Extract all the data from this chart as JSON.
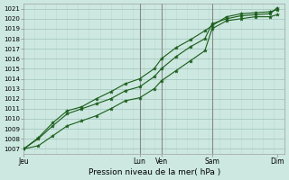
{
  "xlabel": "Pression niveau de la mer( hPa )",
  "bg_color": "#cce8e0",
  "grid_major_color": "#a8c8c0",
  "grid_minor_color": "#bcd8d0",
  "line_color": "#1a5c1a",
  "vline_color": "#888888",
  "ylim": [
    1006.5,
    1021.5
  ],
  "yticks": [
    1007,
    1008,
    1009,
    1010,
    1011,
    1012,
    1013,
    1014,
    1015,
    1016,
    1017,
    1018,
    1019,
    1020,
    1021
  ],
  "xlim": [
    0,
    9.0
  ],
  "xtick_positions": [
    0.0,
    4.0,
    4.75,
    6.5,
    8.75
  ],
  "xtick_labels": [
    "Jeu",
    "Lun",
    "Ven",
    "Sam",
    "Dim"
  ],
  "vline_positions": [
    4.0,
    4.75,
    6.5
  ],
  "minor_xtick_interval": 0.375,
  "line1_x": [
    0.0,
    0.5,
    1.0,
    1.5,
    2.0,
    2.5,
    3.0,
    3.5,
    4.0,
    4.5,
    4.75,
    5.25,
    5.75,
    6.25,
    6.5,
    7.0,
    7.5,
    8.0,
    8.5,
    8.75
  ],
  "line1_y": [
    1007.0,
    1008.0,
    1009.3,
    1010.5,
    1011.0,
    1011.5,
    1012.0,
    1012.8,
    1013.2,
    1014.2,
    1015.0,
    1016.2,
    1017.2,
    1018.0,
    1019.5,
    1020.0,
    1020.3,
    1020.4,
    1020.5,
    1021.1
  ],
  "line2_x": [
    0.0,
    0.5,
    1.0,
    1.5,
    2.0,
    2.5,
    3.0,
    3.5,
    4.0,
    4.5,
    4.75,
    5.25,
    5.75,
    6.25,
    6.5,
    7.0,
    7.5,
    8.0,
    8.5,
    8.75
  ],
  "line2_y": [
    1007.0,
    1008.1,
    1009.6,
    1010.8,
    1011.2,
    1012.0,
    1012.7,
    1013.5,
    1014.0,
    1015.0,
    1016.0,
    1017.1,
    1017.9,
    1018.8,
    1019.3,
    1020.2,
    1020.5,
    1020.6,
    1020.7,
    1020.9
  ],
  "line3_x": [
    0.0,
    0.5,
    1.0,
    1.5,
    2.0,
    2.5,
    3.0,
    3.5,
    4.0,
    4.5,
    4.75,
    5.25,
    5.75,
    6.25,
    6.5,
    7.0,
    7.5,
    8.0,
    8.5,
    8.75
  ],
  "line3_y": [
    1007.0,
    1007.3,
    1008.3,
    1009.3,
    1009.8,
    1010.3,
    1011.0,
    1011.8,
    1012.1,
    1013.0,
    1013.8,
    1014.8,
    1015.8,
    1016.8,
    1019.0,
    1019.8,
    1020.0,
    1020.2,
    1020.2,
    1020.4
  ]
}
